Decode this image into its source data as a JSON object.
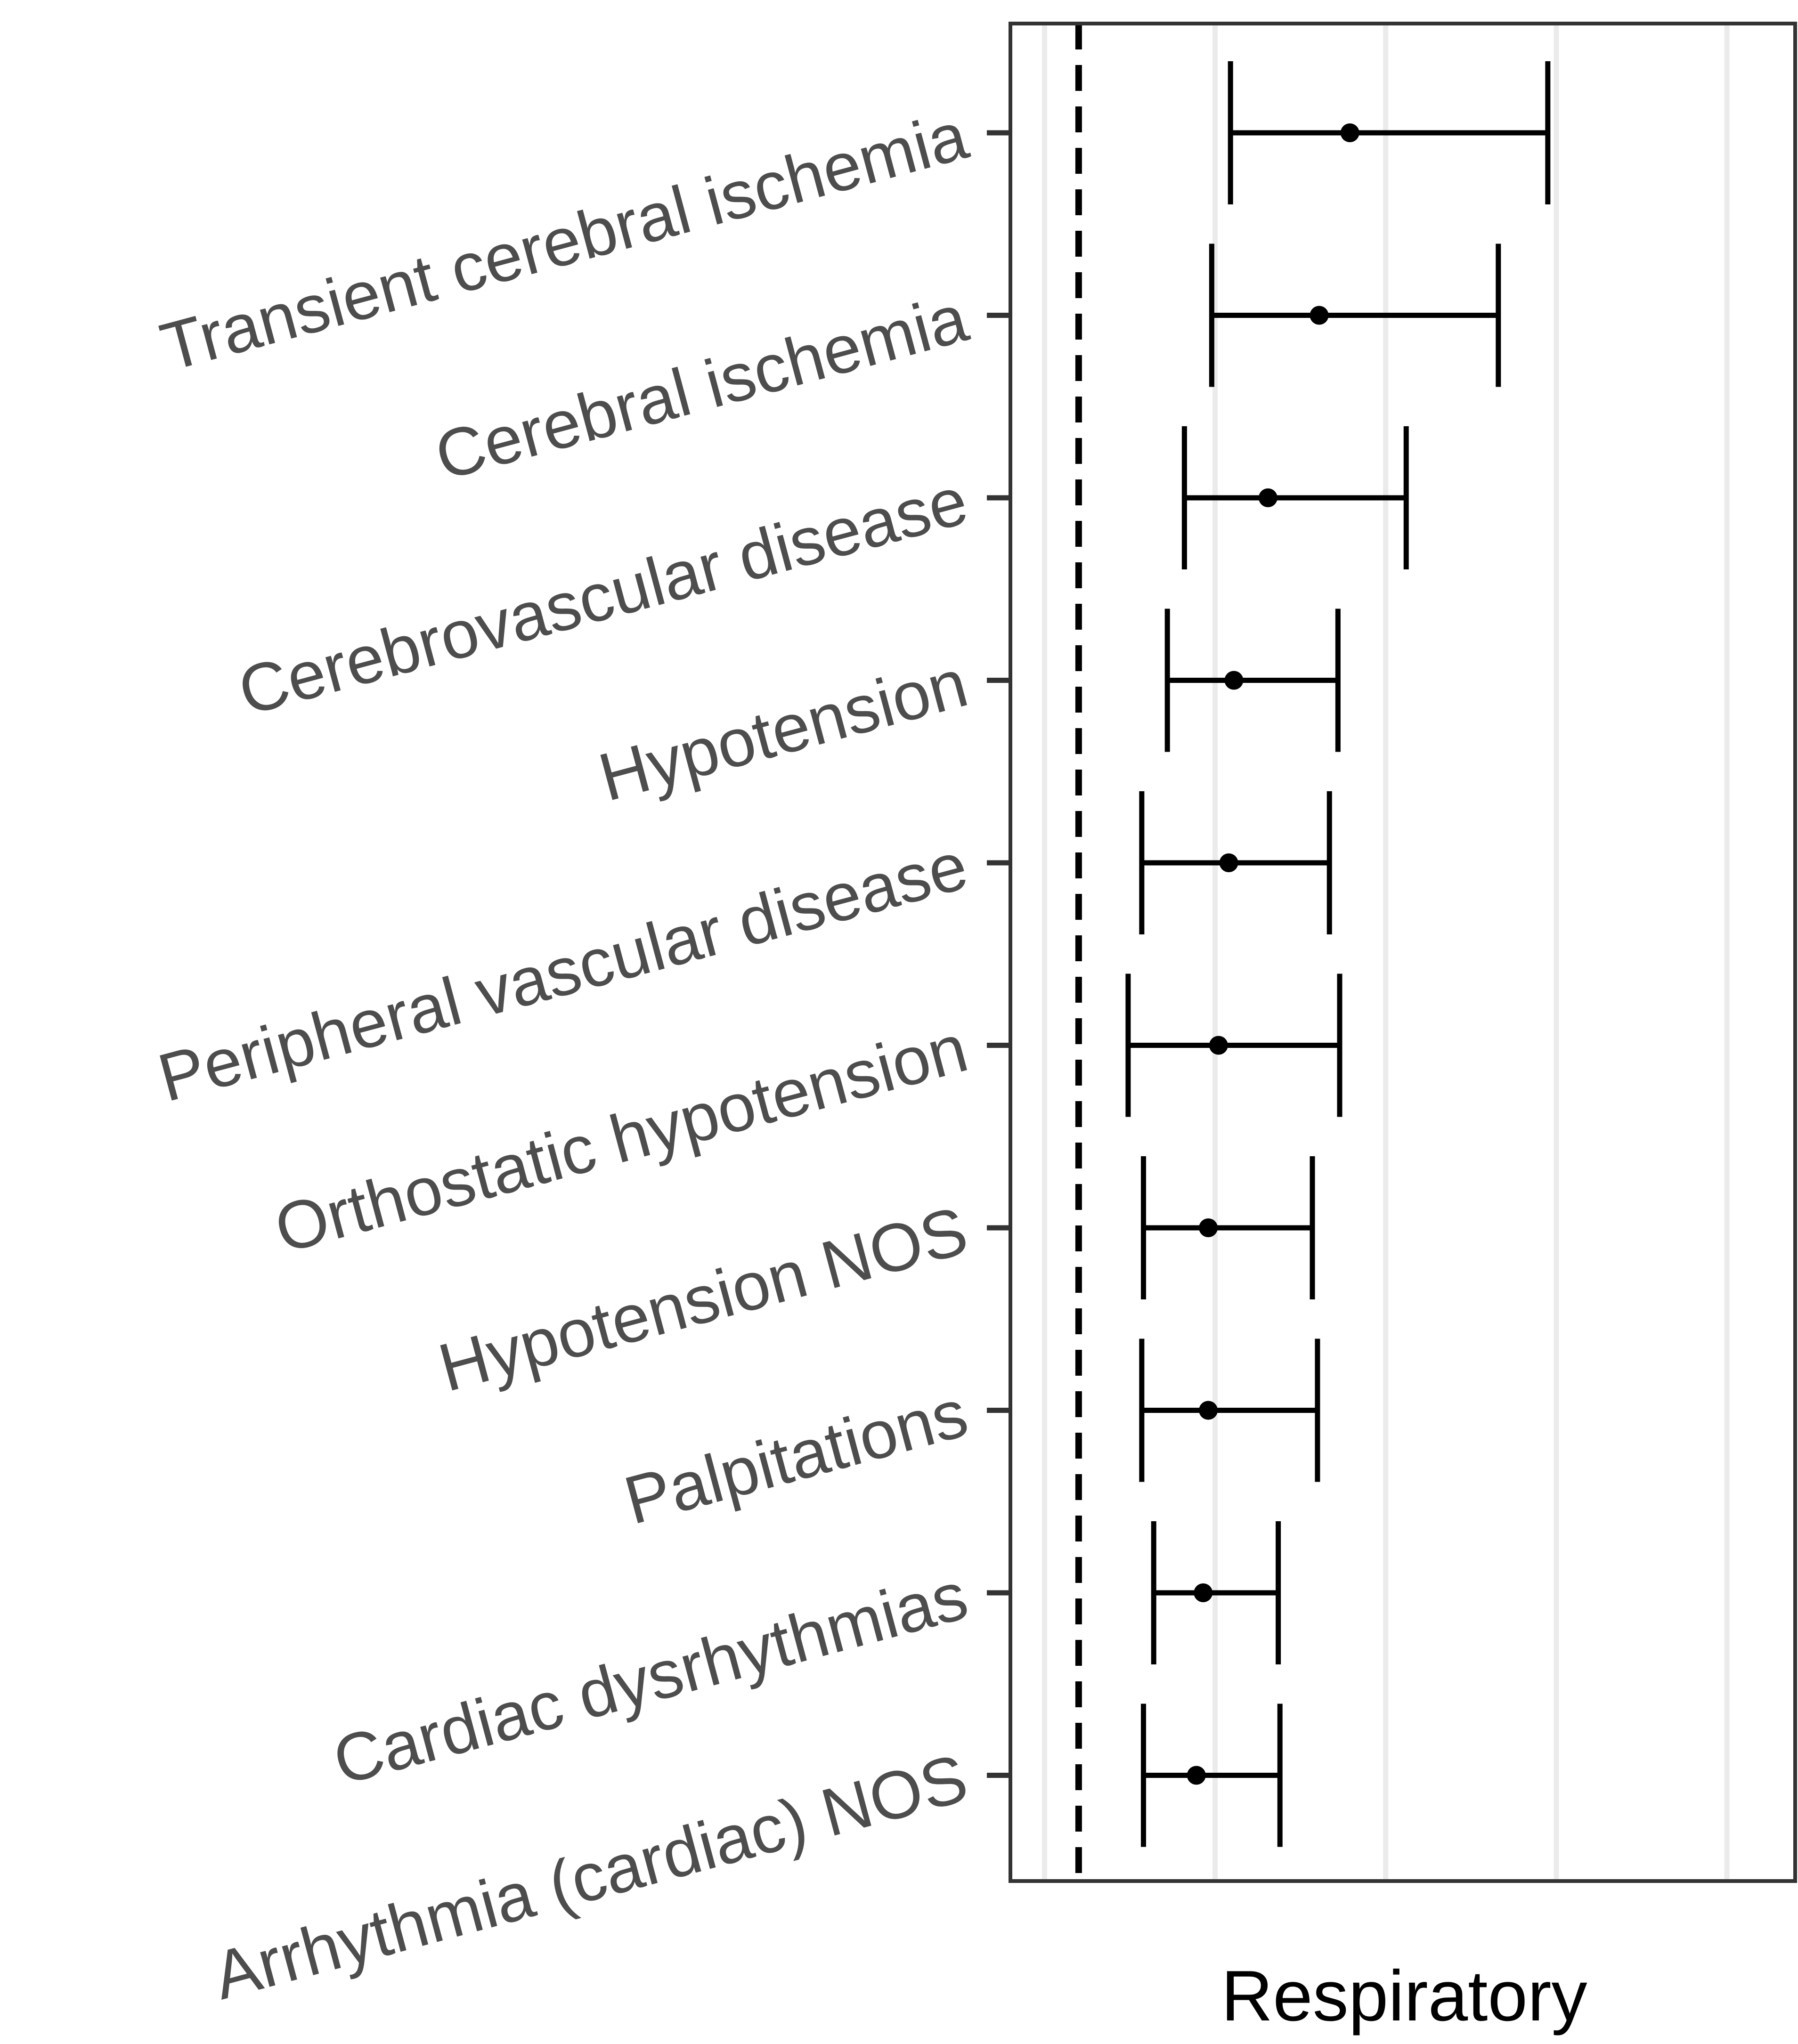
{
  "chart_data": {
    "type": "forest",
    "xlabel": "Respiratory",
    "categories": [
      "Transient cerebral ischemia",
      "Cerebral ischemia",
      "Cerebrovascular disease",
      "Hypotension",
      "Peripheral vascular disease",
      "Orthostatic hypotension",
      "Hypotension NOS",
      "Palpitations",
      "Cardiac dysrhythmias",
      "Arrhythmia (cardiac) NOS"
    ],
    "values": [
      2.59,
      2.41,
      2.11,
      1.91,
      1.88,
      1.82,
      1.76,
      1.76,
      1.73,
      1.69
    ],
    "lower": [
      1.89,
      1.78,
      1.62,
      1.52,
      1.37,
      1.29,
      1.38,
      1.37,
      1.44,
      1.38
    ],
    "upper": [
      3.75,
      3.46,
      2.92,
      2.52,
      2.47,
      2.53,
      2.37,
      2.4,
      2.17,
      2.18
    ],
    "reference": 1,
    "xlim": [
      0.6,
      5.2
    ],
    "xticks": [
      0.8,
      1.8,
      2.8,
      3.8,
      4.8
    ],
    "grid": true,
    "color": "#000000"
  }
}
